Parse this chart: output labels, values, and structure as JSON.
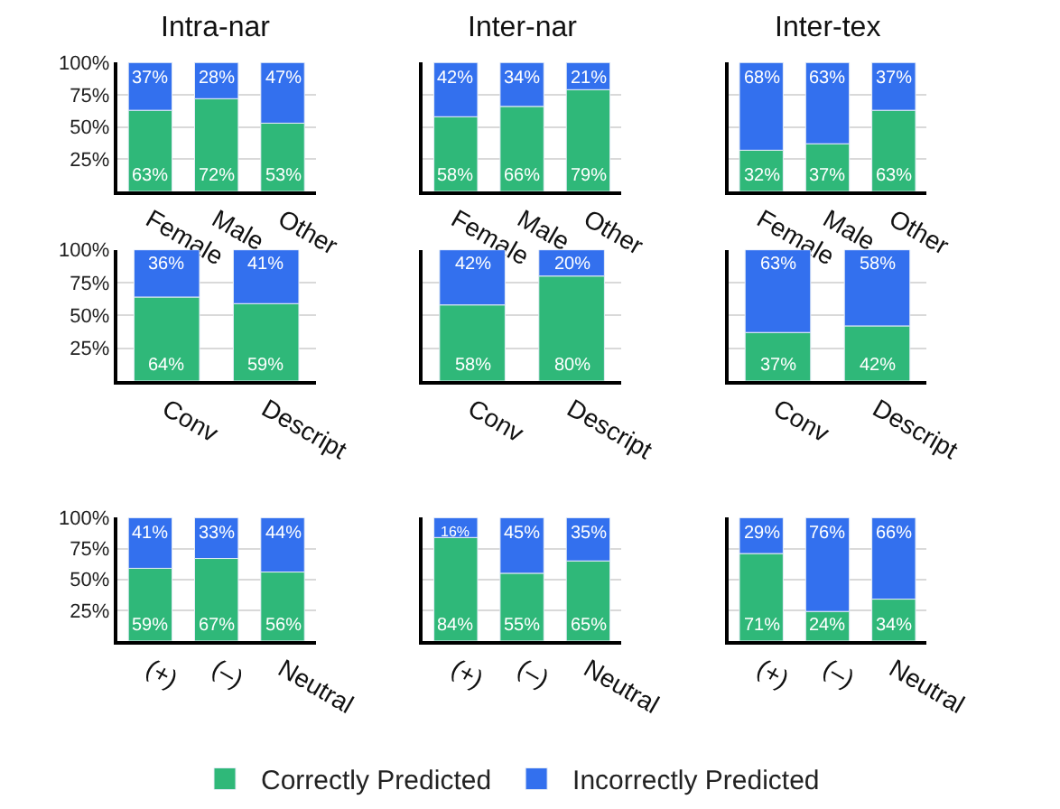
{
  "chart_data": [
    {
      "type": "bar",
      "stacked": true,
      "title": "Intra-nar",
      "categories": [
        "Female",
        "Male",
        "Other"
      ],
      "ylim": [
        0,
        100
      ],
      "yticks": [
        {
          "value": 25,
          "label": "25%"
        },
        {
          "value": 50,
          "label": "50%"
        },
        {
          "value": 75,
          "label": "75%"
        },
        {
          "value": 100,
          "label": "100%"
        }
      ],
      "grid": "y",
      "legend": "bottom",
      "series": [
        {
          "name": "Correctly Predicted",
          "color": "#2fb879",
          "values": [
            63,
            72,
            53
          ],
          "value_labels": [
            "63%",
            "72%",
            "53%"
          ]
        },
        {
          "name": "Incorrectly Predicted",
          "color": "#3370ee",
          "values": [
            37,
            28,
            47
          ],
          "value_labels": [
            "37%",
            "28%",
            "47%"
          ]
        }
      ]
    },
    {
      "type": "bar",
      "stacked": true,
      "title": "Inter-nar",
      "categories": [
        "Female",
        "Male",
        "Other"
      ],
      "ylim": [
        0,
        100
      ],
      "yticks": [
        {
          "value": 25,
          "label": null
        },
        {
          "value": 50,
          "label": null
        },
        {
          "value": 75,
          "label": null
        },
        {
          "value": 100,
          "label": null
        }
      ],
      "grid": "y",
      "tick_labels": "x",
      "series": [
        {
          "color": "#2fb879",
          "values": [
            58,
            66,
            79
          ],
          "value_labels": [
            "58%",
            "66%",
            "79%"
          ]
        },
        {
          "color": "#3370ee",
          "values": [
            42,
            34,
            21
          ],
          "value_labels": [
            "42%",
            "34%",
            "21%"
          ]
        }
      ]
    },
    {
      "type": "bar",
      "stacked": true,
      "title": "Inter-tex",
      "categories": [
        "Female",
        "Male",
        "Other"
      ],
      "ylim": [
        0,
        100
      ],
      "yticks": [
        {
          "value": 25,
          "label": null
        },
        {
          "value": 50,
          "label": null
        },
        {
          "value": 75,
          "label": null
        },
        {
          "value": 100,
          "label": null
        }
      ],
      "grid": "y",
      "tick_labels": "x",
      "series": [
        {
          "color": "#2fb879",
          "values": [
            32,
            37,
            63
          ],
          "value_labels": [
            "32%",
            "37%",
            "63%"
          ]
        },
        {
          "color": "#3370ee",
          "values": [
            68,
            63,
            37
          ],
          "value_labels": [
            "68%",
            "63%",
            "37%"
          ]
        }
      ]
    },
    {
      "type": "bar",
      "stacked": true,
      "categories": [
        "Conv",
        "Descript"
      ],
      "ylim": [
        0,
        100
      ],
      "yticks": [
        {
          "value": 25,
          "label": "25%"
        },
        {
          "value": 50,
          "label": "50%"
        },
        {
          "value": 75,
          "label": "75%"
        },
        {
          "value": 100,
          "label": "100%"
        }
      ],
      "grid": "y",
      "series": [
        {
          "color": "#2fb879",
          "values": [
            64,
            59
          ],
          "value_labels": [
            "64%",
            "59%"
          ]
        },
        {
          "color": "#3370ee",
          "values": [
            36,
            41
          ],
          "value_labels": [
            "36%",
            "41%"
          ]
        }
      ]
    },
    {
      "type": "bar",
      "stacked": true,
      "categories": [
        "Conv",
        "Descript"
      ],
      "ylim": [
        0,
        100
      ],
      "yticks": [
        {
          "value": 25,
          "label": null
        },
        {
          "value": 50,
          "label": null
        },
        {
          "value": 75,
          "label": null
        },
        {
          "value": 100,
          "label": null
        }
      ],
      "grid": "y",
      "tick_labels": "x",
      "series": [
        {
          "color": "#2fb879",
          "values": [
            58,
            80
          ],
          "value_labels": [
            "58%",
            "80%"
          ]
        },
        {
          "color": "#3370ee",
          "values": [
            42,
            20
          ],
          "value_labels": [
            "42%",
            "20%"
          ]
        }
      ]
    },
    {
      "type": "bar",
      "stacked": true,
      "categories": [
        "Conv",
        "Descript"
      ],
      "ylim": [
        0,
        100
      ],
      "yticks": [
        {
          "value": 25,
          "label": null
        },
        {
          "value": 50,
          "label": null
        },
        {
          "value": 75,
          "label": null
        },
        {
          "value": 100,
          "label": null
        }
      ],
      "grid": "y",
      "tick_labels": "x",
      "series": [
        {
          "color": "#2fb879",
          "values": [
            37,
            42
          ],
          "value_labels": [
            "37%",
            "42%"
          ]
        },
        {
          "color": "#3370ee",
          "values": [
            63,
            58
          ],
          "value_labels": [
            "63%",
            "58%"
          ]
        }
      ]
    },
    {
      "type": "bar",
      "stacked": true,
      "categories": [
        "(+)",
        "(–)",
        "Neutral"
      ],
      "ylim": [
        0,
        100
      ],
      "yticks": [
        {
          "value": 25,
          "label": "25%"
        },
        {
          "value": 50,
          "label": "50%"
        },
        {
          "value": 75,
          "label": "75%"
        },
        {
          "value": 100,
          "label": "100%"
        }
      ],
      "grid": "y",
      "series": [
        {
          "color": "#2fb879",
          "values": [
            59,
            67,
            56
          ],
          "value_labels": [
            "59%",
            "67%",
            "56%"
          ]
        },
        {
          "color": "#3370ee",
          "values": [
            41,
            33,
            44
          ],
          "value_labels": [
            "41%",
            "33%",
            "44%"
          ]
        }
      ]
    },
    {
      "type": "bar",
      "stacked": true,
      "categories": [
        "(+)",
        "(–)",
        "Neutral"
      ],
      "ylim": [
        0,
        100
      ],
      "yticks": [
        {
          "value": 25,
          "label": null
        },
        {
          "value": 50,
          "label": null
        },
        {
          "value": 75,
          "label": null
        },
        {
          "value": 100,
          "label": null
        }
      ],
      "grid": "y",
      "tick_labels": "x",
      "series": [
        {
          "color": "#2fb879",
          "values": [
            84,
            55,
            65
          ],
          "value_labels": [
            "84%",
            "55%",
            "65%"
          ]
        },
        {
          "color": "#3370ee",
          "values": [
            16,
            45,
            35
          ],
          "value_labels": [
            "16%",
            "45%",
            "35%"
          ]
        }
      ]
    },
    {
      "type": "bar",
      "stacked": true,
      "categories": [
        "(+)",
        "(–)",
        "Neutral"
      ],
      "ylim": [
        0,
        100
      ],
      "yticks": [
        {
          "value": 25,
          "label": null
        },
        {
          "value": 50,
          "label": null
        },
        {
          "value": 75,
          "label": null
        },
        {
          "value": 100,
          "label": null
        }
      ],
      "grid": "y",
      "tick_labels": "x",
      "series": [
        {
          "color": "#2fb879",
          "values": [
            71,
            24,
            34
          ],
          "value_labels": [
            "71%",
            "24%",
            "34%"
          ]
        },
        {
          "color": "#3370ee",
          "values": [
            29,
            76,
            66
          ],
          "value_labels": [
            "29%",
            "76%",
            "66%"
          ]
        }
      ]
    }
  ]
}
